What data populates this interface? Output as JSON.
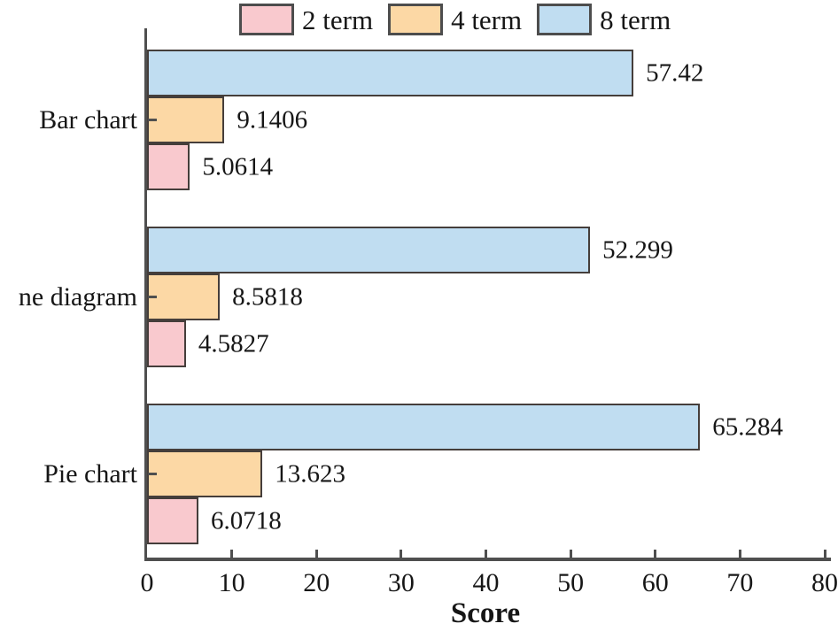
{
  "chart_data": {
    "type": "bar",
    "orientation": "horizontal",
    "categories": [
      "Bar chart",
      "ne diagram",
      "Pie chart"
    ],
    "series": [
      {
        "name": "2 term",
        "color": "#f9c9ce",
        "values": [
          "5.0614",
          "4.5827",
          "6.0718"
        ]
      },
      {
        "name": "4 term",
        "color": "#fcd8a5",
        "values": [
          "9.1406",
          "8.5818",
          "13.623"
        ]
      },
      {
        "name": "8 term",
        "color": "#c0ddf1",
        "values": [
          "57.42",
          "52.299",
          "65.284"
        ]
      }
    ],
    "row_order_top_to_bottom": [
      "8 term",
      "4 term",
      "2 term"
    ],
    "xlabel": "Score",
    "x_ticks": [
      0,
      10,
      20,
      30,
      40,
      50,
      60,
      70,
      80
    ],
    "xlim": [
      0,
      80
    ],
    "legend_position": "top",
    "grid": false
  },
  "style_colors": {
    "axis": "#4f4f4f",
    "bar_border": "#453e3b",
    "text": "#161616",
    "background": "#ffffff"
  }
}
